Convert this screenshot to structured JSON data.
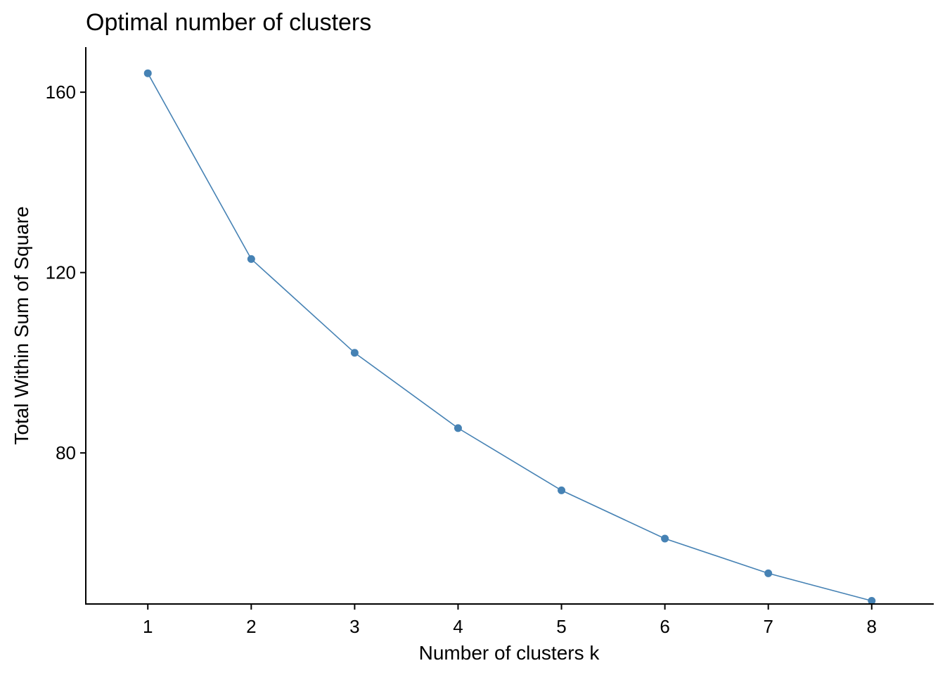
{
  "chart_data": {
    "type": "line",
    "title": "Optimal number of clusters",
    "xlabel": "Number of clusters k",
    "ylabel": "Total Within Sum of Square",
    "x": [
      1,
      2,
      3,
      4,
      5,
      6,
      7,
      8
    ],
    "x_tick_labels": [
      "1",
      "2",
      "3",
      "4",
      "5",
      "6",
      "7",
      "8"
    ],
    "y_ticks": [
      80,
      120,
      160
    ],
    "y_tick_labels": [
      "80",
      "120",
      "160"
    ],
    "xlim": [
      0.4,
      8.6
    ],
    "ylim": [
      46.5,
      170
    ],
    "series": [
      {
        "values": [
          164.2,
          123.0,
          102.2,
          85.5,
          71.7,
          61.0,
          53.3,
          47.2
        ],
        "color": "#4682B4",
        "markers": true
      }
    ],
    "grid": false,
    "legend": "none"
  }
}
